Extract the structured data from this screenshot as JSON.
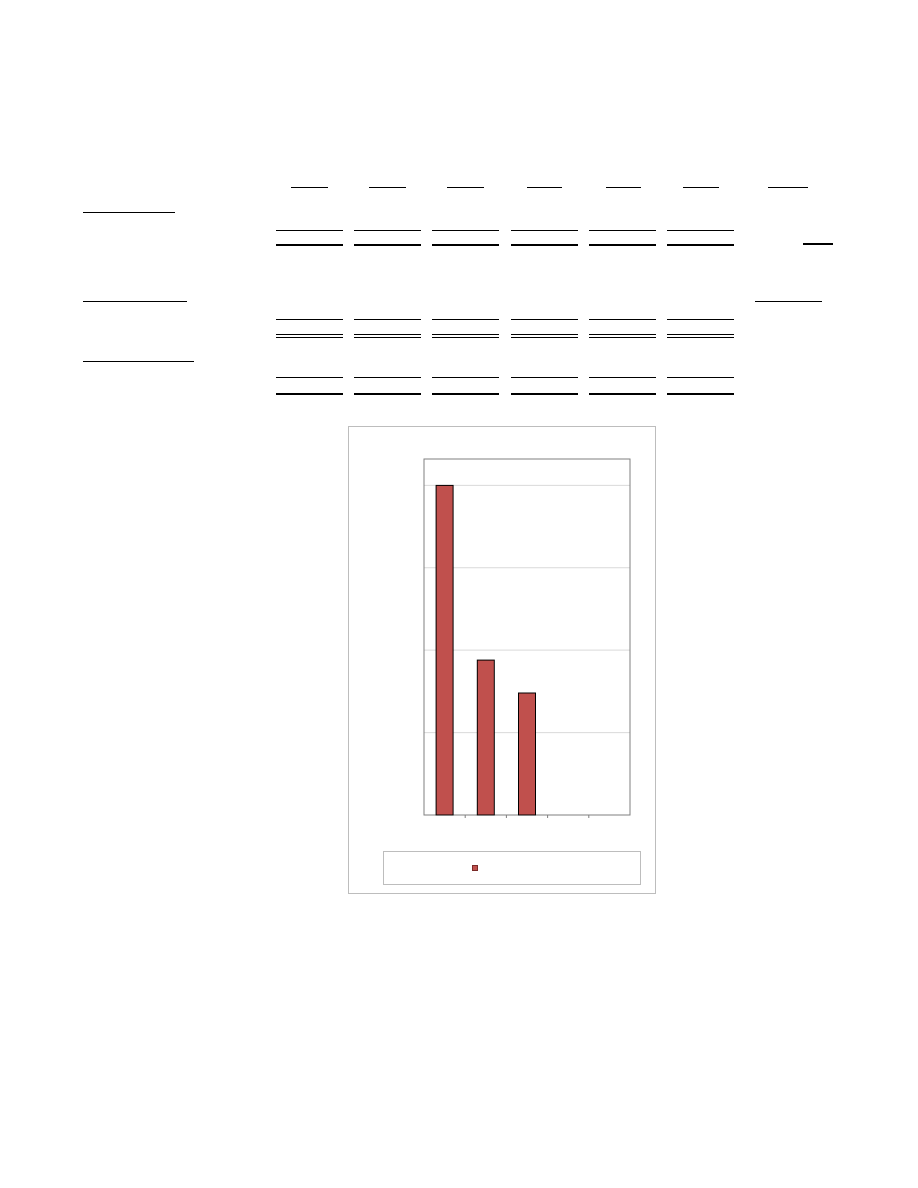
{
  "page": {
    "headers": [],
    "rows": [],
    "section_labels": []
  },
  "chart_data": {
    "type": "bar",
    "categories": [
      "",
      "",
      "",
      "",
      ""
    ],
    "values": [
      100,
      47,
      37,
      0,
      0
    ],
    "ylim": [
      0,
      108
    ],
    "grid": true,
    "legend": "bottom",
    "bar_color": "#c0504d",
    "gridline_color": "#d9d9d9"
  }
}
